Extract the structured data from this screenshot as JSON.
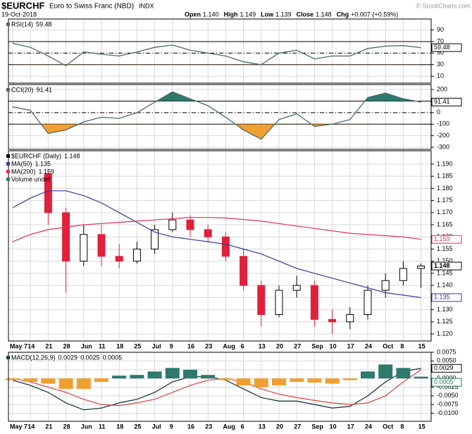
{
  "header": {
    "symbol": "$EURCHF",
    "name": "Euro to Swiss Franc (NBD)",
    "exchange": "INDX",
    "date": "19-Oct-2018",
    "credit": "© StockCharts.com",
    "quote": [
      {
        "label": "Open",
        "value": "1.140"
      },
      {
        "label": "High",
        "value": "1.149"
      },
      {
        "label": "Low",
        "value": "1.139"
      },
      {
        "label": "Close",
        "value": "1.148"
      },
      {
        "label": "Chg",
        "value": "+0.007 (+0.59%)"
      }
    ]
  },
  "chart_data": [
    {
      "type": "line",
      "title": "RSI(14)",
      "ylim": [
        -2,
        109
      ],
      "yticks": [
        10,
        30,
        50,
        70,
        90
      ],
      "reference_lines": [
        {
          "value": 70,
          "style": "solid"
        },
        {
          "value": 30,
          "style": "solid"
        },
        {
          "value": 50,
          "style": "dashdot"
        }
      ],
      "fill": {
        "upper": 70,
        "lower": 30,
        "upper_color": "#2e7a6c",
        "lower_color": "#f0a030"
      },
      "series": [
        {
          "name": "RSI(14)",
          "color": "#4f6a6a",
          "values": [
            67,
            60,
            45,
            28,
            52,
            48,
            45,
            52,
            60,
            64,
            55,
            50,
            45,
            35,
            30,
            50,
            55,
            40,
            45,
            45,
            58,
            62,
            63,
            59.48
          ]
        }
      ]
    },
    {
      "type": "line",
      "title": "CCI(20)",
      "ylim": [
        -318,
        243
      ],
      "yticks": [
        -300,
        -200,
        -100,
        0,
        100,
        200
      ],
      "reference_lines": [
        {
          "value": 100,
          "style": "solid"
        },
        {
          "value": -100,
          "style": "solid"
        },
        {
          "value": 0,
          "style": "dashdot"
        }
      ],
      "fill": {
        "upper": 100,
        "lower": -100,
        "upper_color": "#2e7a6c",
        "lower_color": "#f0a030"
      },
      "series": [
        {
          "name": "CCI(20)",
          "color": "#4f6a6a",
          "values": [
            50,
            20,
            -180,
            -150,
            -80,
            -40,
            -50,
            0,
            90,
            180,
            120,
            60,
            -40,
            -150,
            -230,
            -60,
            -10,
            -120,
            -100,
            -60,
            130,
            170,
            120,
            91.41
          ]
        }
      ]
    },
    {
      "type": "candlestick",
      "categories": [
        "May 7",
        "14",
        "21",
        "28",
        "Jun",
        "11",
        "18",
        "25",
        "Jul",
        "9",
        "16",
        "23",
        "Aug",
        "6",
        "13",
        "20",
        "27",
        "Sep",
        "10",
        "17",
        "24",
        "Oct",
        "8",
        "15"
      ],
      "ylim": [
        1.1171,
        1.1955
      ],
      "yticks": [
        {
          "value": 1.12,
          "label": "1.120"
        },
        {
          "value": 1.125,
          "label": "1.125"
        },
        {
          "value": 1.13,
          "label": "1.130"
        },
        {
          "value": 1.135,
          "label": "1.135"
        },
        {
          "value": 1.14,
          "label": "1.140"
        },
        {
          "value": 1.145,
          "label": "1.145"
        },
        {
          "value": 1.15,
          "label": "1.150"
        },
        {
          "value": 1.155,
          "label": "1.155"
        },
        {
          "value": 1.16,
          "label": "1.160"
        },
        {
          "value": 1.165,
          "label": "1.165"
        },
        {
          "value": 1.17,
          "label": "1.170"
        },
        {
          "value": 1.175,
          "label": "1.175"
        },
        {
          "value": 1.18,
          "label": "1.180"
        },
        {
          "value": 1.185,
          "label": "1.185"
        },
        {
          "value": 1.19,
          "label": "1.190"
        }
      ],
      "candles": {
        "name": "$EURCHF (Daily)",
        "up_color": "#ffffff",
        "down_color": "#e0203c",
        "open": [
          null,
          null,
          1.186,
          1.17,
          1.15,
          1.161,
          1.152,
          1.15,
          1.155,
          1.163,
          1.167,
          1.163,
          1.16,
          1.152,
          1.14,
          1.128,
          1.138,
          1.14,
          1.126,
          1.125,
          1.128,
          1.138,
          1.142,
          1.147
        ],
        "high": [
          null,
          null,
          1.187,
          1.172,
          1.165,
          1.165,
          1.157,
          1.158,
          1.165,
          1.17,
          1.169,
          1.165,
          1.162,
          1.155,
          1.142,
          1.14,
          1.144,
          1.142,
          1.13,
          1.131,
          1.14,
          1.145,
          1.15,
          1.149
        ],
        "low": [
          null,
          null,
          1.165,
          1.137,
          1.148,
          1.148,
          1.147,
          1.149,
          1.153,
          1.162,
          1.16,
          1.158,
          1.15,
          1.138,
          1.123,
          1.127,
          1.135,
          1.123,
          1.12,
          1.122,
          1.126,
          1.135,
          1.14,
          1.139
        ],
        "close": [
          null,
          null,
          1.17,
          1.15,
          1.161,
          1.152,
          1.15,
          1.155,
          1.163,
          1.167,
          1.163,
          1.16,
          1.152,
          1.14,
          1.128,
          1.138,
          1.14,
          1.126,
          1.125,
          1.128,
          1.138,
          1.142,
          1.147,
          1.148
        ]
      },
      "series": [
        {
          "name": "MA(50)",
          "color": "#3a3a9a",
          "values": [
            1.172,
            1.176,
            1.179,
            1.179,
            1.177,
            1.174,
            1.17,
            1.166,
            1.162,
            1.16,
            1.159,
            1.158,
            1.157,
            1.155,
            1.153,
            1.15,
            1.147,
            1.145,
            1.143,
            1.141,
            1.139,
            1.137,
            1.136,
            1.135
          ]
        },
        {
          "name": "MA(200)",
          "color": "#dd3355",
          "values": [
            1.158,
            1.161,
            1.163,
            1.164,
            1.165,
            1.1655,
            1.166,
            1.1665,
            1.167,
            1.1675,
            1.168,
            1.168,
            1.1678,
            1.1672,
            1.1665,
            1.1655,
            1.1645,
            1.1635,
            1.1625,
            1.1615,
            1.161,
            1.1605,
            1.16,
            1.159
          ]
        }
      ],
      "volume_label": "Volume undef",
      "volume_color": "#2e7a6c"
    },
    {
      "type": "line",
      "title": "MACD(12,26,9)",
      "categories": [
        "May 7",
        "14",
        "21",
        "28",
        "Jun",
        "11",
        "18",
        "25",
        "Jul",
        "9",
        "16",
        "23",
        "Aug",
        "6",
        "13",
        "20",
        "27",
        "Sep",
        "10",
        "17",
        "24",
        "Oct",
        "8",
        "15"
      ],
      "ylim": [
        -0.0123,
        0.0075
      ],
      "yticks": [
        {
          "value": -0.01,
          "label": "-0.0100"
        },
        {
          "value": -0.0075,
          "label": "-0.0075"
        },
        {
          "value": -0.005,
          "label": "-0.0050"
        },
        {
          "value": -0.0025,
          "label": "-0.0025"
        },
        {
          "value": 0,
          "label": "0.0000"
        },
        {
          "value": 0.0025,
          "label": "0.0025"
        },
        {
          "value": 0.005,
          "label": "0.0050"
        },
        {
          "value": 0.0075,
          "label": "0.0075"
        }
      ],
      "series": [
        {
          "name": "MACD",
          "color": "#1f3d3d",
          "values": [
            -0.0005,
            -0.002,
            -0.004,
            -0.007,
            -0.009,
            -0.0085,
            -0.007,
            -0.006,
            -0.004,
            -0.001,
            0.0005,
            0.0005,
            -0.0005,
            -0.003,
            -0.0055,
            -0.0065,
            -0.0065,
            -0.0075,
            -0.0085,
            -0.008,
            -0.005,
            -0.001,
            0.002,
            0.0029
          ]
        },
        {
          "name": "Signal",
          "color": "#e05050",
          "values": [
            0,
            -0.001,
            -0.0025,
            -0.004,
            -0.006,
            -0.0075,
            -0.0078,
            -0.007,
            -0.006,
            -0.004,
            -0.002,
            -0.0005,
            0,
            -0.001,
            -0.003,
            -0.0045,
            -0.0055,
            -0.0063,
            -0.007,
            -0.0075,
            -0.007,
            -0.005,
            -0.001,
            0.0025
          ]
        },
        {
          "name": "Histogram",
          "kind": "histogram",
          "color": "#2e7a6c",
          "negative_color": "#f0a030",
          "values": [
            -0.0005,
            -0.001,
            -0.0015,
            -0.003,
            -0.003,
            -0.001,
            0.0008,
            0.001,
            0.002,
            0.003,
            0.0025,
            0.001,
            -0.0005,
            -0.002,
            -0.0025,
            -0.002,
            -0.001,
            -0.0012,
            -0.0015,
            -0.0005,
            0.002,
            0.004,
            0.003,
            0.0005
          ]
        }
      ]
    }
  ]
}
